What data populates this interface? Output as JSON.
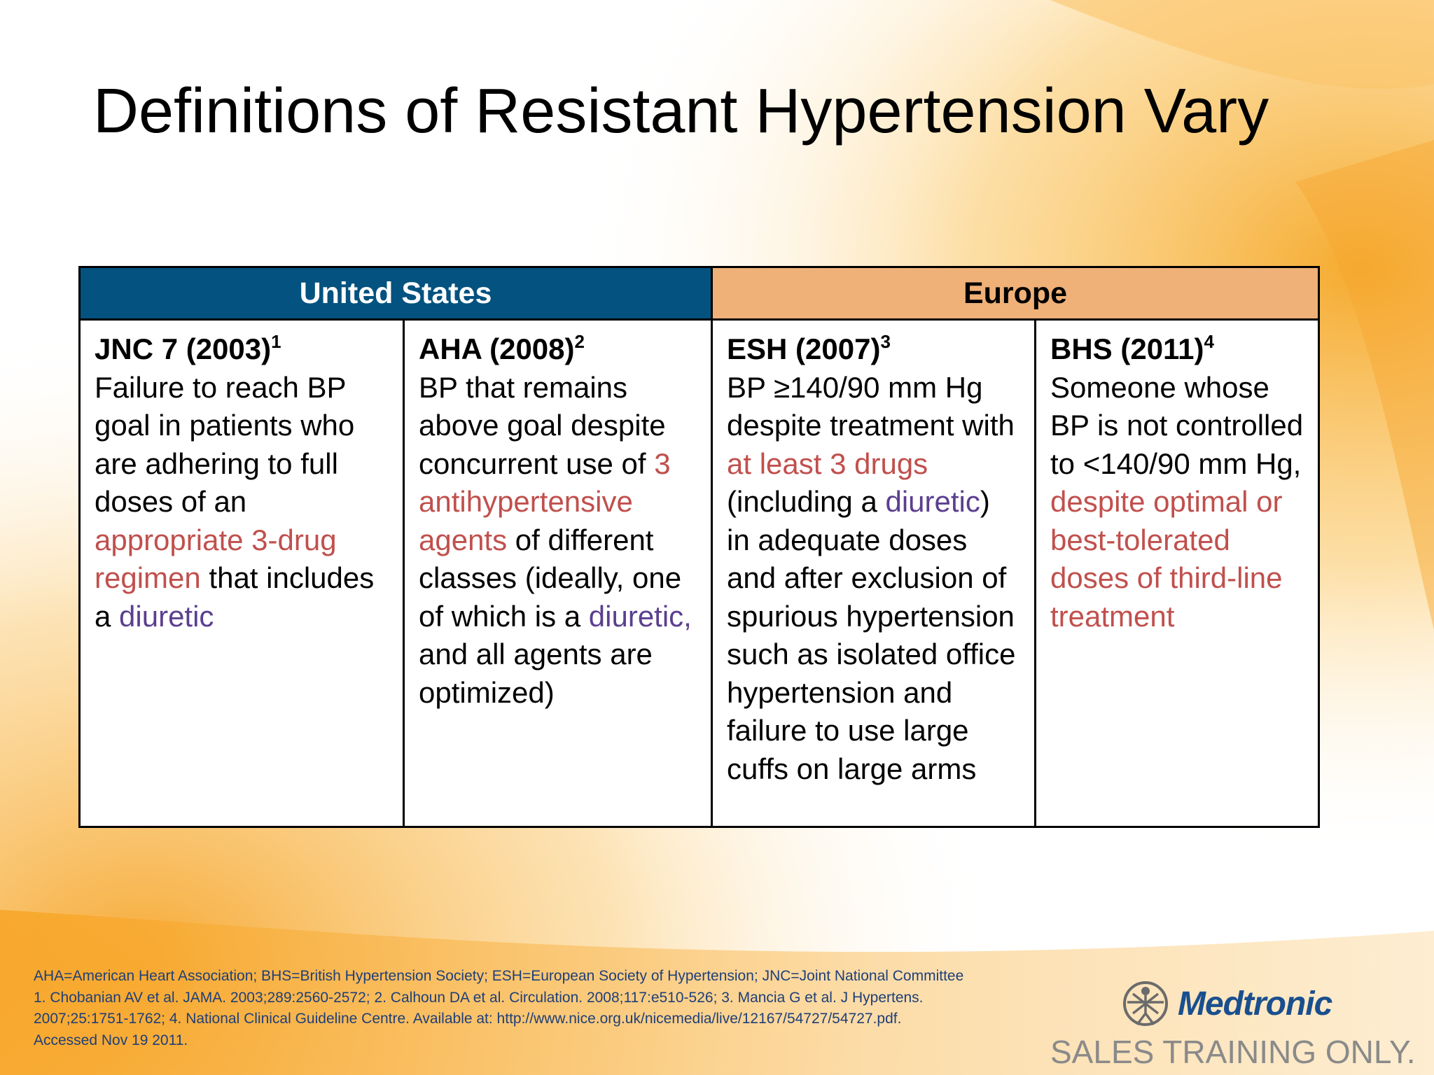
{
  "slide": {
    "title": "Definitions of Resistant Hypertension Vary",
    "colors": {
      "us_header": "#03527f",
      "eu_header": "#efb178",
      "highlight_red": "#c0504d",
      "highlight_purple": "#5b3f8f"
    }
  },
  "table": {
    "regions": [
      "United States",
      "Europe"
    ],
    "columns": [
      {
        "heading": "JNC 7 (2003)",
        "ref": "1",
        "text": [
          {
            "t": "Failure to reach BP goal in patients who are adhering to full doses of an ",
            "c": "plain"
          },
          {
            "t": "appropriate 3-drug regimen",
            "c": "red"
          },
          {
            "t": " that includes a ",
            "c": "plain"
          },
          {
            "t": "diuretic",
            "c": "purple"
          }
        ]
      },
      {
        "heading": "AHA (2008)",
        "ref": "2",
        "text": [
          {
            "t": "BP that remains above goal despite concurrent use of ",
            "c": "plain"
          },
          {
            "t": "3 antihypertensive agents",
            "c": "red"
          },
          {
            "t": " of different classes (ideally, one of which is a ",
            "c": "plain"
          },
          {
            "t": "diuretic,",
            "c": "purple"
          },
          {
            "t": " and all agents are optimized)",
            "c": "plain"
          }
        ]
      },
      {
        "heading": "ESH (2007)",
        "ref": "3",
        "text": [
          {
            "t": "BP ≥140/90 mm Hg despite treatment with ",
            "c": "plain"
          },
          {
            "t": "at least 3 drugs",
            "c": "red"
          },
          {
            "t": " (including a ",
            "c": "plain"
          },
          {
            "t": "diuretic",
            "c": "purple"
          },
          {
            "t": ") in adequate doses and after exclusion of spurious hypertension such as isolated office hypertension and failure to use large cuffs on large arms",
            "c": "plain"
          }
        ]
      },
      {
        "heading": "BHS (2011)",
        "ref": "4",
        "text": [
          {
            "t": "Someone whose BP is not controlled to <140/90 mm Hg, ",
            "c": "plain"
          },
          {
            "t": "despite optimal or best-tolerated doses of third-line treatment",
            "c": "red"
          }
        ]
      }
    ]
  },
  "footnotes": {
    "abbreviations": "AHA=American Heart Association; BHS=British Hypertension Society; ESH=European Society of Hypertension; JNC=Joint National Committee",
    "line2": "1. Chobanian AV et al. JAMA. 2003;289:2560-2572; 2. Calhoun DA et al. Circulation. 2008;117:e510-526; 3. Mancia G et al. J Hypertens.",
    "line3": "2007;25:1751-1762; 4. National Clinical Guideline Centre. Available at: http://www.nice.org.uk/nicemedia/live/12167/54727/54727.pdf.",
    "line4": "Accessed Nov 19 2011."
  },
  "brand": {
    "logo_text": "Medtronic",
    "logo_icon": "medtronic-figure-icon",
    "notice": "SALES TRAINING ONLY."
  }
}
